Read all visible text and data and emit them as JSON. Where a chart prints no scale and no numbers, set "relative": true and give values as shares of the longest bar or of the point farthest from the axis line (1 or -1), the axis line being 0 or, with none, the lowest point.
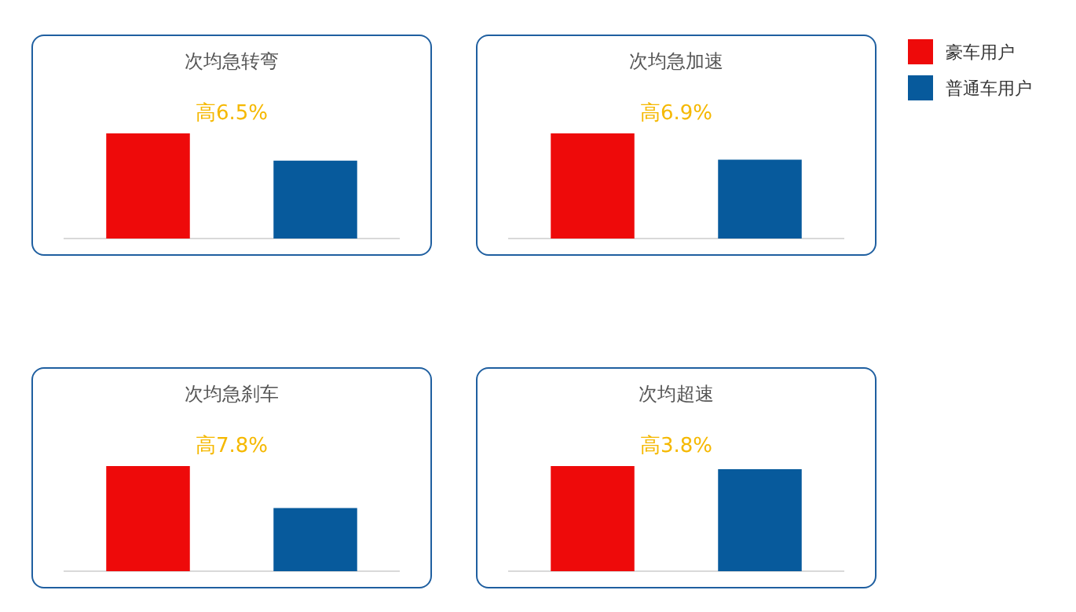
{
  "chart_data": [
    {
      "type": "bar",
      "title": "次均急转弯",
      "categories": [
        null,
        null
      ],
      "relative": true,
      "stacked": true,
      "annotations": [
        "高6.5%"
      ],
      "series": [
        {
          "color": "#ee0a0a",
          "values": [
            1,
            null
          ]
        },
        {
          "color": "#075a9c",
          "values": [
            null,
            0.74
          ]
        }
      ]
    },
    {
      "type": "bar",
      "title": "次均急加速",
      "categories": [
        null,
        null
      ],
      "relative": true,
      "stacked": true,
      "legend": "right",
      "annotations": [
        "高6.9%"
      ],
      "series": [
        {
          "name": "豪车用户",
          "color": "#ee0a0a",
          "values": [
            1,
            null
          ]
        },
        {
          "name": "普通车用户",
          "color": "#075a9c",
          "values": [
            null,
            0.75
          ]
        }
      ]
    },
    {
      "type": "bar",
      "title": "次均急刹车",
      "categories": [
        null,
        null
      ],
      "relative": true,
      "stacked": true,
      "annotations": [
        "高7.8%"
      ],
      "series": [
        {
          "color": "#ee0a0a",
          "values": [
            1,
            null
          ]
        },
        {
          "color": "#075a9c",
          "values": [
            null,
            0.6
          ]
        }
      ]
    },
    {
      "type": "bar",
      "title": "次均超速",
      "categories": [
        null,
        null
      ],
      "relative": true,
      "stacked": true,
      "annotations": [
        "高3.8%"
      ],
      "series": [
        {
          "color": "#ee0a0a",
          "values": [
            1,
            null
          ]
        },
        {
          "color": "#075a9c",
          "values": [
            null,
            0.97
          ]
        }
      ]
    }
  ]
}
